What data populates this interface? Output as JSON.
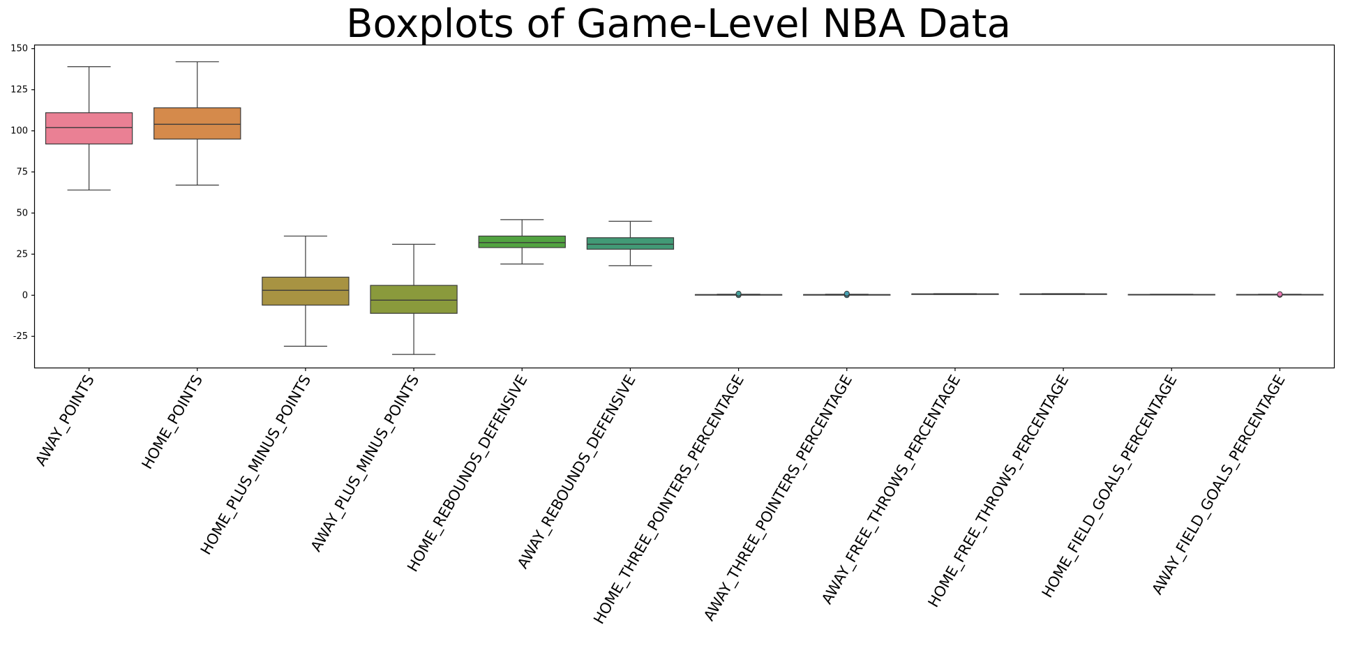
{
  "chart_data": {
    "type": "boxplot",
    "title": "Boxplots of Game-Level NBA Data",
    "xlabel": "",
    "ylabel": "",
    "ylim": [
      -44,
      152
    ],
    "yticks": [
      -25,
      0,
      25,
      50,
      75,
      100,
      125,
      150
    ],
    "grid": false,
    "categories": [
      "AWAY_POINTS",
      "HOME_POINTS",
      "HOME_PLUS_MINUS_POINTS",
      "AWAY_PLUS_MINUS_POINTS",
      "HOME_REBOUNDS_DEFENSIVE",
      "AWAY_REBOUNDS_DEFENSIVE",
      "HOME_THREE_POINTERS_PERCENTAGE",
      "AWAY_THREE_POINTERS_PERCENTAGE",
      "AWAY_FREE_THROWS_PERCENTAGE",
      "HOME_FREE_THROWS_PERCENTAGE",
      "HOME_FIELD_GOALS_PERCENTAGE",
      "AWAY_FIELD_GOALS_PERCENTAGE"
    ],
    "boxes": [
      {
        "min": 64,
        "q1": 92,
        "median": 102,
        "q3": 111,
        "max": 139,
        "outliers": []
      },
      {
        "min": 67,
        "q1": 95,
        "median": 104,
        "q3": 114,
        "max": 142,
        "outliers": []
      },
      {
        "min": -31,
        "q1": -6,
        "median": 3,
        "q3": 11,
        "max": 36,
        "outliers": []
      },
      {
        "min": -36,
        "q1": -11,
        "median": -3,
        "q3": 6,
        "max": 31,
        "outliers": []
      },
      {
        "min": 19,
        "q1": 29,
        "median": 32,
        "q3": 36,
        "max": 46,
        "outliers": []
      },
      {
        "min": 18,
        "q1": 28,
        "median": 31,
        "q3": 35,
        "max": 45,
        "outliers": []
      },
      {
        "min": 0.1,
        "q1": 0.3,
        "median": 0.35,
        "q3": 0.4,
        "max": 0.6,
        "outliers": [
          0.0,
          0.8,
          1.0
        ]
      },
      {
        "min": 0.1,
        "q1": 0.3,
        "median": 0.35,
        "q3": 0.4,
        "max": 0.6,
        "outliers": [
          0.0,
          0.8,
          1.0
        ]
      },
      {
        "min": 0.5,
        "q1": 0.7,
        "median": 0.76,
        "q3": 0.82,
        "max": 1.0,
        "outliers": []
      },
      {
        "min": 0.5,
        "q1": 0.7,
        "median": 0.76,
        "q3": 0.82,
        "max": 1.0,
        "outliers": []
      },
      {
        "min": 0.3,
        "q1": 0.42,
        "median": 0.46,
        "q3": 0.5,
        "max": 0.62,
        "outliers": []
      },
      {
        "min": 0.3,
        "q1": 0.42,
        "median": 0.45,
        "q3": 0.49,
        "max": 0.62,
        "outliers": [
          0.2,
          0.7
        ]
      }
    ],
    "colors": [
      "#ea8094",
      "#d58a4b",
      "#a89342",
      "#8a9a3c",
      "#52a341",
      "#429a76",
      "#43a09b",
      "#45a0b2",
      "#4a97d1",
      "#a092e3",
      "#e079d6",
      "#ea77b4"
    ]
  }
}
